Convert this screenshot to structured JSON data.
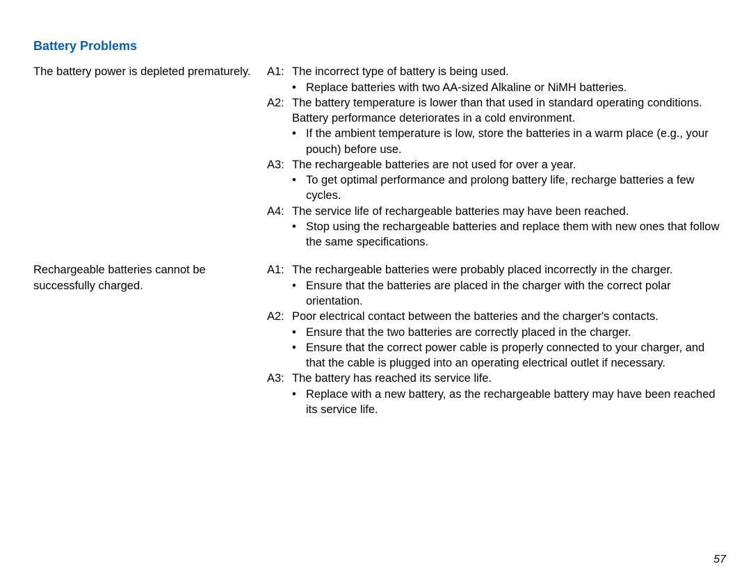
{
  "colors": {
    "heading": "#0a5eb0",
    "text": "#000000",
    "background": "#ffffff"
  },
  "heading": "Battery Problems",
  "pageNumber": "57",
  "sections": [
    {
      "problem": "The battery power is depleted prematurely.",
      "answers": [
        {
          "label": "A1:",
          "text": "The incorrect type of battery is being used.",
          "bullets": [
            "Replace batteries with two AA-sized Alkaline or NiMH batteries."
          ]
        },
        {
          "label": "A2:",
          "text": "The battery temperature is lower than that used in standard operating conditions. Battery performance deteriorates in a cold environment.",
          "bullets": [
            "If the ambient temperature is low, store the batteries in a warm place (e.g., your pouch) before use."
          ]
        },
        {
          "label": "A3:",
          "text": "The rechargeable batteries are not used for over a year.",
          "bullets": [
            "To get optimal performance and prolong battery life, recharge batteries a few cycles."
          ]
        },
        {
          "label": "A4:",
          "text": "The service life of rechargeable batteries may have been reached.",
          "bullets": [
            "Stop using the rechargeable batteries and replace them with new ones that follow the same specifications."
          ]
        }
      ]
    },
    {
      "problem": "Rechargeable batteries cannot be successfully charged.",
      "answers": [
        {
          "label": "A1:",
          "text": "The rechargeable batteries were probably placed incorrectly in the charger.",
          "bullets": [
            "Ensure that the batteries are placed in the charger with the correct polar orientation."
          ]
        },
        {
          "label": "A2:",
          "text": "Poor electrical contact between the batteries and the charger's contacts.",
          "bullets": [
            "Ensure that the two batteries are correctly placed in the charger.",
            "Ensure that the correct power cable is properly connected to your charger, and that the cable is plugged into an operating electrical outlet if necessary."
          ]
        },
        {
          "label": "A3:",
          "text": "The battery has reached its service life.",
          "bullets": [
            "Replace with a new battery, as the rechargeable battery may have been reached its service life."
          ]
        }
      ]
    }
  ]
}
